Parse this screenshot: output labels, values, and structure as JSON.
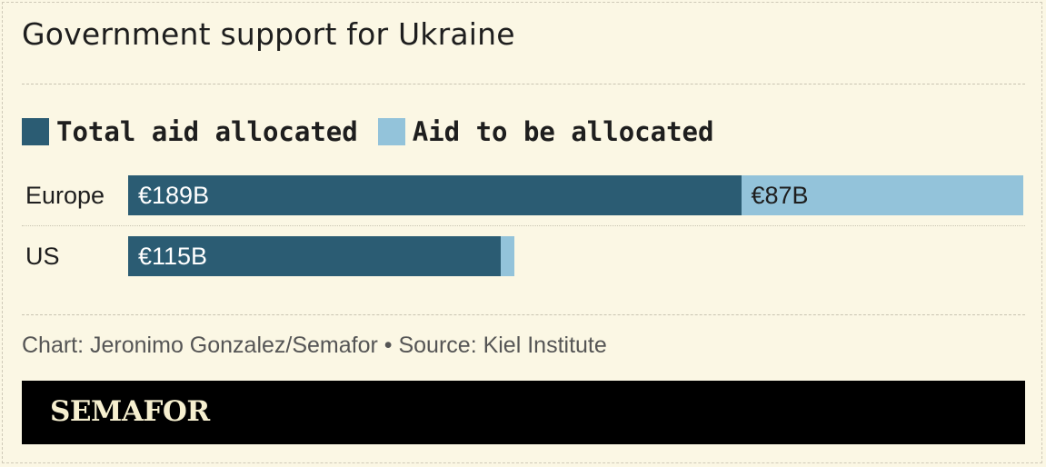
{
  "chart_data": {
    "type": "bar",
    "orientation": "horizontal",
    "stacked": true,
    "title": "Government support for Ukraine",
    "categories": [
      "Europe",
      "US"
    ],
    "series": [
      {
        "name": "Total aid allocated",
        "values": [
          189,
          115
        ],
        "labels": [
          "€189B",
          "€115B"
        ],
        "color": "#2b5c73"
      },
      {
        "name": "Aid to be allocated",
        "values": [
          87,
          4
        ],
        "labels": [
          "€87B",
          ""
        ],
        "color": "#93c3da"
      }
    ],
    "unit": "€B",
    "xlim": [
      0,
      276
    ],
    "legend_position": "top-left",
    "grid": false
  },
  "source": "Chart: Jeronimo Gonzalez/Semafor • Source: Kiel Institute",
  "brand": "SEMAFOR",
  "colors": {
    "background": "#fbf7e4",
    "footer": "#000000",
    "brand_text": "#f6efcf"
  }
}
